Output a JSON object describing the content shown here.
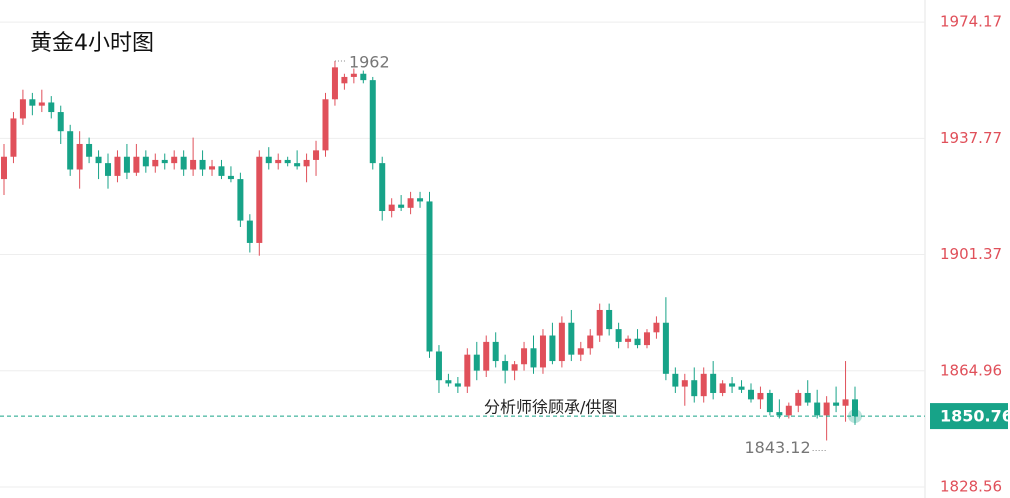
{
  "chart_data": {
    "type": "candlestick",
    "title": "黄金4小时图",
    "watermark": "分析师徐顾承/供图",
    "up_color": "#e0505a",
    "down_color": "#17a388",
    "last_price": 1850.76,
    "last_price_color": "#17a388",
    "ylim": [
      1825.1,
      1981.1
    ],
    "yticks": [
      1828.56,
      1864.96,
      1901.37,
      1937.77,
      1974.17
    ],
    "grid": true,
    "open": [
      1925,
      1932,
      1944,
      1950,
      1948,
      1949,
      1946,
      1940,
      1928,
      1936,
      1932,
      1930,
      1926,
      1932,
      1927,
      1932,
      1929,
      1931,
      1930,
      1932,
      1928,
      1931,
      1928,
      1929,
      1926,
      1925,
      1912,
      1905,
      1932,
      1930,
      1931,
      1930,
      1929,
      1931,
      1934,
      1950,
      1955,
      1957,
      1958,
      1956,
      1930,
      1915,
      1917,
      1916,
      1919,
      1918,
      1871,
      1862,
      1861,
      1860,
      1870,
      1865,
      1874,
      1868,
      1865,
      1867,
      1872,
      1866,
      1876,
      1868,
      1880,
      1870,
      1872,
      1876,
      1884,
      1878,
      1874,
      1875,
      1873,
      1877,
      1880,
      1864,
      1860,
      1862,
      1857,
      1864,
      1858,
      1861,
      1860,
      1859,
      1856,
      1858,
      1852,
      1851,
      1854,
      1858,
      1855,
      1851,
      1855,
      1854,
      1856
    ],
    "high": [
      1936,
      1946,
      1953,
      1952,
      1953,
      1951,
      1948,
      1942,
      1940,
      1938,
      1934,
      1933,
      1934,
      1936,
      1936,
      1934,
      1933,
      1933,
      1934,
      1934,
      1938,
      1934,
      1931,
      1931,
      1929,
      1927,
      1914,
      1934,
      1935,
      1933,
      1932,
      1934,
      1933,
      1937,
      1952,
      1962,
      1958,
      1959.61,
      1959,
      1957,
      1932,
      1919,
      1920,
      1921,
      1921,
      1921,
      1873,
      1864,
      1863,
      1872,
      1874,
      1876,
      1877,
      1870,
      1868,
      1874,
      1876,
      1878,
      1880,
      1882,
      1884,
      1874,
      1878,
      1886,
      1886,
      1880,
      1876,
      1878,
      1878,
      1882,
      1888,
      1866,
      1864,
      1866,
      1866,
      1868,
      1862,
      1863,
      1862,
      1861,
      1860,
      1859,
      1856,
      1855,
      1859,
      1862,
      1859,
      1857,
      1860,
      1868,
      1860
    ],
    "low": [
      1920,
      1930,
      1942,
      1945,
      1946,
      1944,
      1936,
      1926,
      1922,
      1930,
      1925,
      1922,
      1924,
      1925,
      1926,
      1927,
      1927,
      1928,
      1928,
      1926,
      1926,
      1926,
      1926,
      1925,
      1924,
      1910,
      1902,
      1901,
      1928,
      1928,
      1929,
      1928,
      1924,
      1926,
      1932,
      1948,
      1953,
      1955,
      1955,
      1928,
      1912,
      1913,
      1915,
      1914,
      1916,
      1869,
      1858,
      1860,
      1858,
      1858,
      1862,
      1863,
      1866,
      1861,
      1862,
      1865,
      1864,
      1864,
      1867,
      1866,
      1868,
      1868,
      1870,
      1874,
      1876,
      1872,
      1872,
      1872,
      1872,
      1875,
      1862,
      1858,
      1854,
      1855,
      1855,
      1856,
      1857,
      1858,
      1858,
      1855,
      1853,
      1851,
      1850,
      1850,
      1852,
      1854,
      1850,
      1843.12,
      1852,
      1849,
      1848
    ],
    "close": [
      1932,
      1944,
      1950,
      1948,
      1949,
      1946,
      1940,
      1928,
      1936,
      1932,
      1930,
      1926,
      1932,
      1927,
      1932,
      1929,
      1931,
      1930,
      1932,
      1928,
      1931,
      1928,
      1929,
      1926,
      1925,
      1912,
      1905,
      1932,
      1930,
      1931,
      1930,
      1929,
      1931,
      1934,
      1950,
      1960,
      1957,
      1958,
      1956,
      1930,
      1915,
      1917,
      1916,
      1919,
      1918,
      1871,
      1862,
      1861,
      1860,
      1870,
      1865,
      1874,
      1868,
      1865,
      1867,
      1872,
      1866,
      1876,
      1868,
      1880,
      1870,
      1872,
      1876,
      1884,
      1878,
      1874,
      1875,
      1873,
      1877,
      1880,
      1864,
      1860,
      1862,
      1857,
      1864,
      1858,
      1861,
      1860,
      1859,
      1856,
      1858,
      1852,
      1851,
      1854,
      1858,
      1855,
      1851,
      1855,
      1854,
      1856,
      1850.76
    ]
  }
}
